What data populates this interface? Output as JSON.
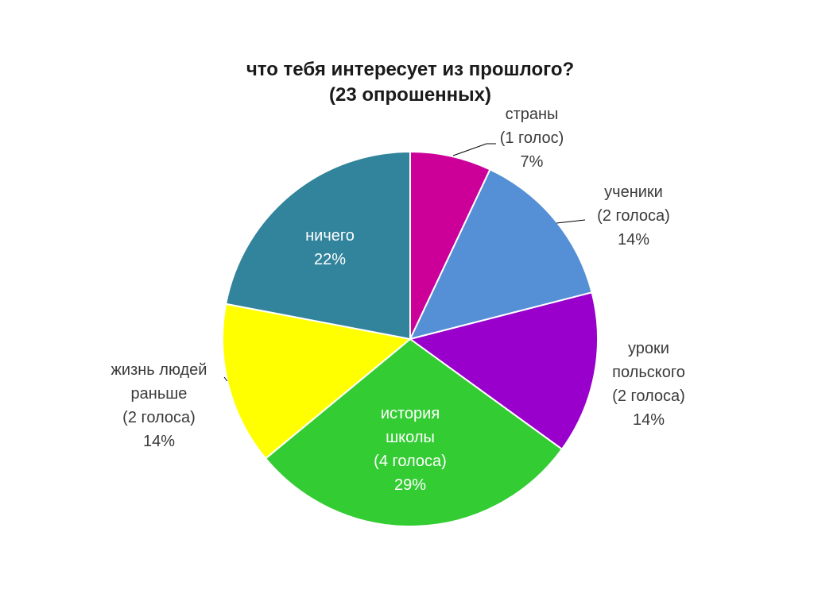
{
  "chart_data": {
    "type": "pie",
    "title_lines": [
      "что тебя интересует из прошлого?",
      "(23 опрошенных)"
    ],
    "slices": [
      {
        "key": "strany",
        "label_lines": [
          "страны",
          "(1 голос)",
          "7%"
        ],
        "value": 7,
        "color": "#cc0099"
      },
      {
        "key": "ucheniki",
        "label_lines": [
          "ученики",
          "(2  голоса)",
          "14%"
        ],
        "value": 14,
        "color": "#558fd6"
      },
      {
        "key": "uroki",
        "label_lines": [
          "уроки",
          "польского",
          "(2 голоса)",
          "14%"
        ],
        "value": 14,
        "color": "#9900cc"
      },
      {
        "key": "istoriya",
        "label_lines": [
          "история",
          "школы",
          "(4 голоса)",
          "29%"
        ],
        "value": 29,
        "color": "#33cc33"
      },
      {
        "key": "zhizn",
        "label_lines": [
          "жизнь людей",
          "раньше",
          "(2 голоса)",
          "14%"
        ],
        "value": 14,
        "color": "#ffff00"
      },
      {
        "key": "nichego",
        "label_lines": [
          "ничего",
          "22%"
        ],
        "value": 22,
        "color": "#31849b"
      }
    ]
  }
}
